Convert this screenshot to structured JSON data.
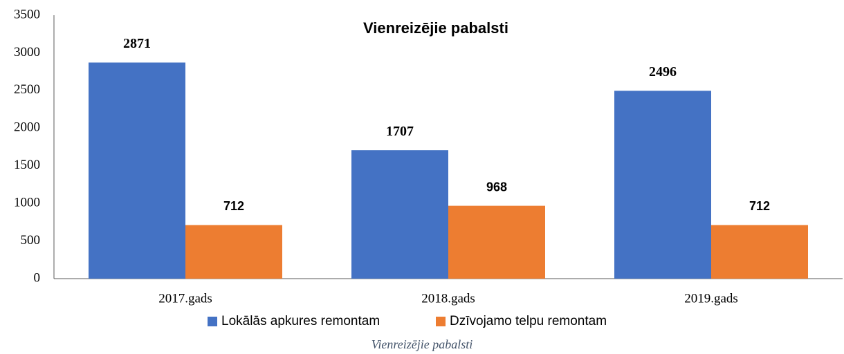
{
  "chart_data": {
    "type": "bar",
    "title": "Vienreizējie pabalsti",
    "categories": [
      "2017.gads",
      "2018.gads",
      "2019.gads"
    ],
    "series": [
      {
        "name": "Lokālās apkures remontam",
        "color": "#4472c4",
        "values": [
          2871,
          1707,
          2496
        ]
      },
      {
        "name": "Dzīvojamo telpu remontam",
        "color": "#ed7d31",
        "values": [
          712,
          968,
          712
        ]
      }
    ],
    "ylim": [
      0,
      3500
    ],
    "yticks": [
      0,
      500,
      1000,
      1500,
      2000,
      2500,
      3000,
      3500
    ],
    "grid": false,
    "legend": "bottom",
    "caption": "Vienreizējie pabalsti"
  }
}
